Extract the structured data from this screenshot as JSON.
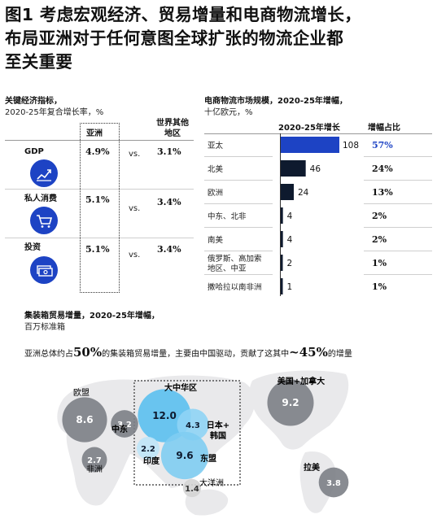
{
  "title_lines": [
    "图1 考虑宏观经济、贸易增量和电商物流增长，",
    "布局亚洲对于任何意图全球扩张的物流企业都",
    "至关重要"
  ],
  "left_panel": {
    "header": "关键经济指标，",
    "subheader": "2020-25年复合增长率，%",
    "col_asia": "亚洲",
    "col_rest": [
      "世界其他",
      "地区"
    ],
    "vs_label": "vs.",
    "rows": [
      {
        "label": "GDP",
        "asia": "4.9%",
        "rest": "3.1%",
        "icon": "chart-growth-icon"
      },
      {
        "label": "私人消费",
        "asia": "5.1%",
        "rest": "3.4%",
        "icon": "shopping-cart-icon"
      },
      {
        "label": "投资",
        "asia": "5.1%",
        "rest": "3.4%",
        "icon": "money-stack-icon"
      }
    ]
  },
  "chart_data": [
    {
      "type": "bar",
      "title": "电商物流市场规模，2020-25年增幅，",
      "subtitle": "十亿欧元，%",
      "column_headers": [
        "2020-25年增长",
        "增幅占比"
      ],
      "categories": [
        "亚太",
        "北美",
        "欧洲",
        "中东、北非",
        "南美",
        "俄罗斯、高加索地区、中亚",
        "撒哈拉以南非洲"
      ],
      "category_lines": [
        [
          "亚太"
        ],
        [
          "北美"
        ],
        [
          "欧洲"
        ],
        [
          "中东、北非"
        ],
        [
          "南美"
        ],
        [
          "俄罗斯、高加索",
          "地区、中亚"
        ],
        [
          "撒哈拉以南非洲"
        ]
      ],
      "values": [
        108,
        46,
        24,
        4,
        4,
        2,
        1
      ],
      "shares": [
        "57%",
        "24%",
        "13%",
        "2%",
        "2%",
        "1%",
        "1%"
      ],
      "colors": [
        "#1d43c4",
        "#0e1a2e",
        "#0e1a2e",
        "#0e1a2e",
        "#0e1a2e",
        "#0e1a2e",
        "#0e1a2e"
      ],
      "highlight_share_color": "#1d43c4"
    },
    {
      "type": "bubble-map",
      "title": "集装箱贸易增量，2020-25年增幅，",
      "subtitle": "百万标准箱",
      "regions": [
        {
          "name": "欧盟",
          "value": 8.6,
          "color": "#7c7f86"
        },
        {
          "name": "中东",
          "value": 3.2,
          "color": "#7c7f86"
        },
        {
          "name": "非洲",
          "value": 2.7,
          "color": "#7c7f86"
        },
        {
          "name": "大中华区",
          "value": 12.0,
          "color": "#5bc0ef"
        },
        {
          "name": "日本+韩国",
          "value": 4.3,
          "color": "#8fd4f5"
        },
        {
          "name": "印度",
          "value": 2.2,
          "color": "#bfe5f8"
        },
        {
          "name": "东盟",
          "value": 9.6,
          "color": "#7fcdf2"
        },
        {
          "name": "大洋洲",
          "value": 1.4,
          "color": "#d4d4d4"
        },
        {
          "name": "美国+加拿大",
          "value": 9.2,
          "color": "#7c7f86"
        },
        {
          "name": "拉美",
          "value": 3.8,
          "color": "#7c7f86"
        }
      ]
    }
  ],
  "callout": {
    "part1": "亚洲总体约占",
    "pct1": "50%",
    "part2": "的集装箱贸易增量，主要由中国驱动，贡献了这其中",
    "pct2": "~45%",
    "part3": "的增量"
  },
  "map_labels": {
    "eu": "欧盟",
    "me": "中东",
    "af": "非洲",
    "gc": "大中华区",
    "jk": [
      "日本+",
      "韩国"
    ],
    "in": "印度",
    "as": "东盟",
    "oc": "大洋洲",
    "us": "美国+加拿大",
    "la": "拉美"
  }
}
